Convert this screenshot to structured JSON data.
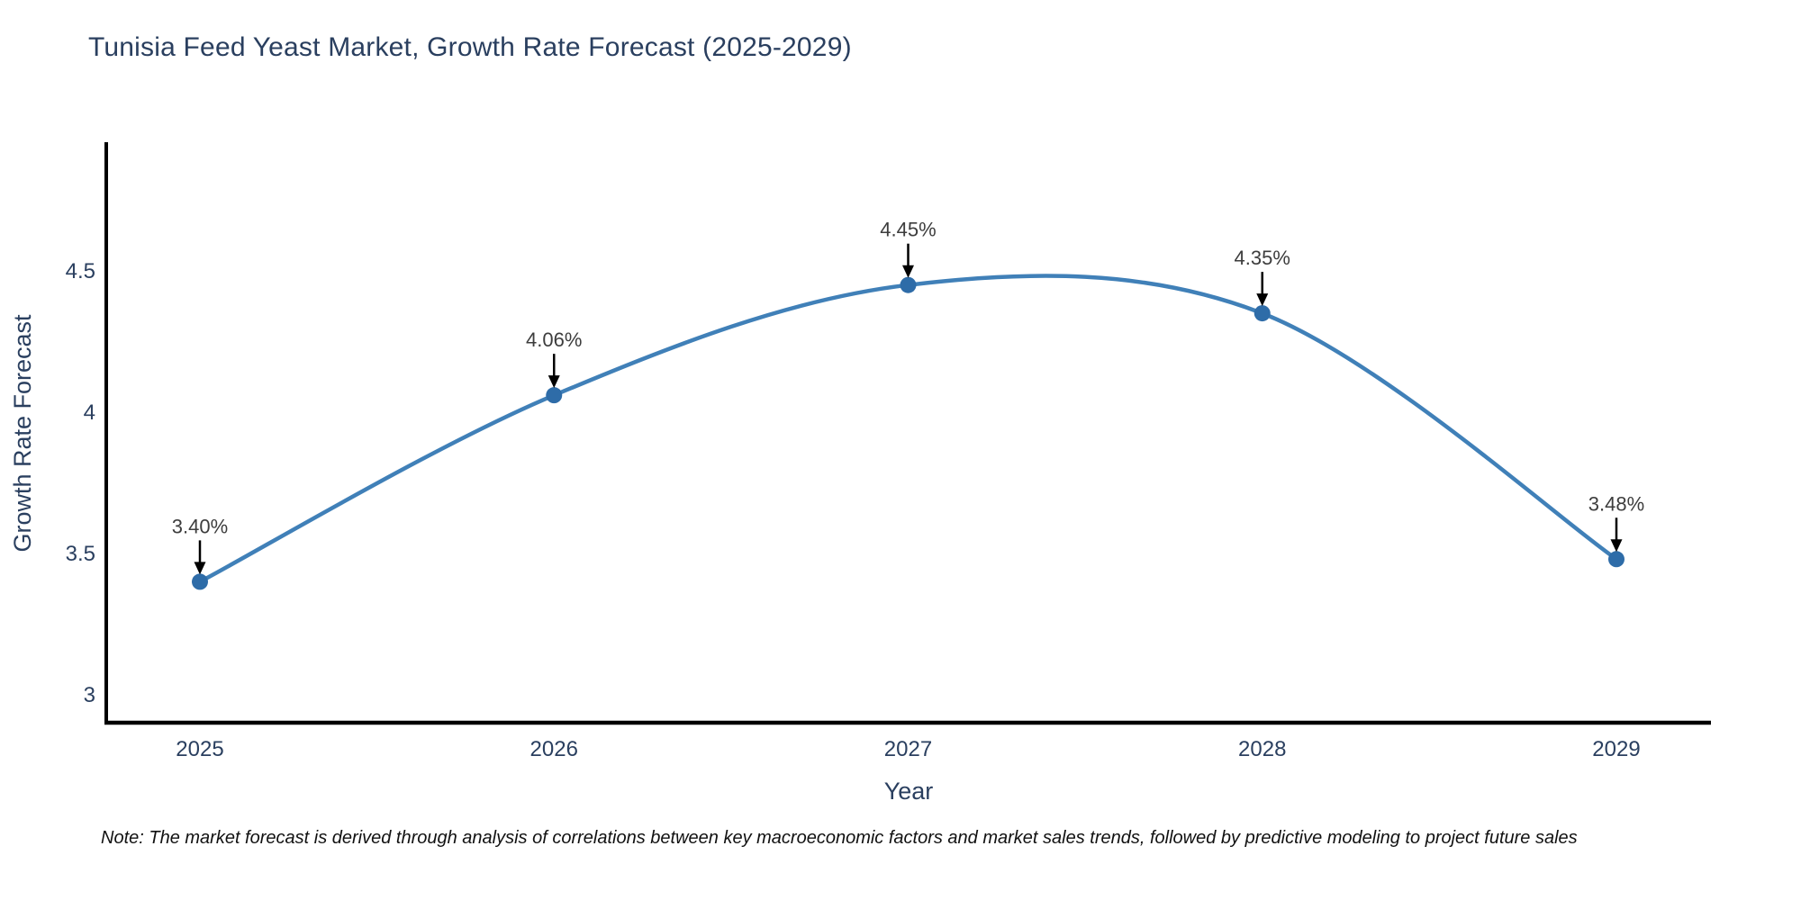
{
  "title": "Tunisia Feed Yeast Market, Growth Rate Forecast (2025-2029)",
  "footnote": "Note: The market forecast is derived through analysis of correlations between key macroeconomic factors and market sales trends, followed by predictive modeling to project future sales",
  "chart_data": {
    "type": "line",
    "title": "Tunisia Feed Yeast Market, Growth Rate Forecast (2025-2029)",
    "xlabel": "Year",
    "ylabel": "Growth Rate Forecast",
    "categories": [
      "2025",
      "2026",
      "2027",
      "2028",
      "2029"
    ],
    "series": [
      {
        "name": "Growth Rate Forecast",
        "values": [
          3.4,
          4.06,
          4.45,
          4.35,
          3.48
        ]
      }
    ],
    "point_labels": [
      "3.40%",
      "4.06%",
      "4.45%",
      "4.35%",
      "3.48%"
    ],
    "yticks": [
      3,
      3.5,
      4,
      4.5
    ],
    "ylim": [
      2.9,
      4.95
    ],
    "line_shape": "spline",
    "grid": false,
    "legend_position": "none",
    "colors": {
      "line": "#4080b8",
      "marker": "#2e6ca8",
      "arrow": "#000000",
      "point_label": "#3d3d3d",
      "axis_line": "#000000",
      "tick_label": "#2a3f5f",
      "axis_title": "#2a3f5f",
      "title": "#2a3f5f",
      "background": "#ffffff"
    }
  }
}
